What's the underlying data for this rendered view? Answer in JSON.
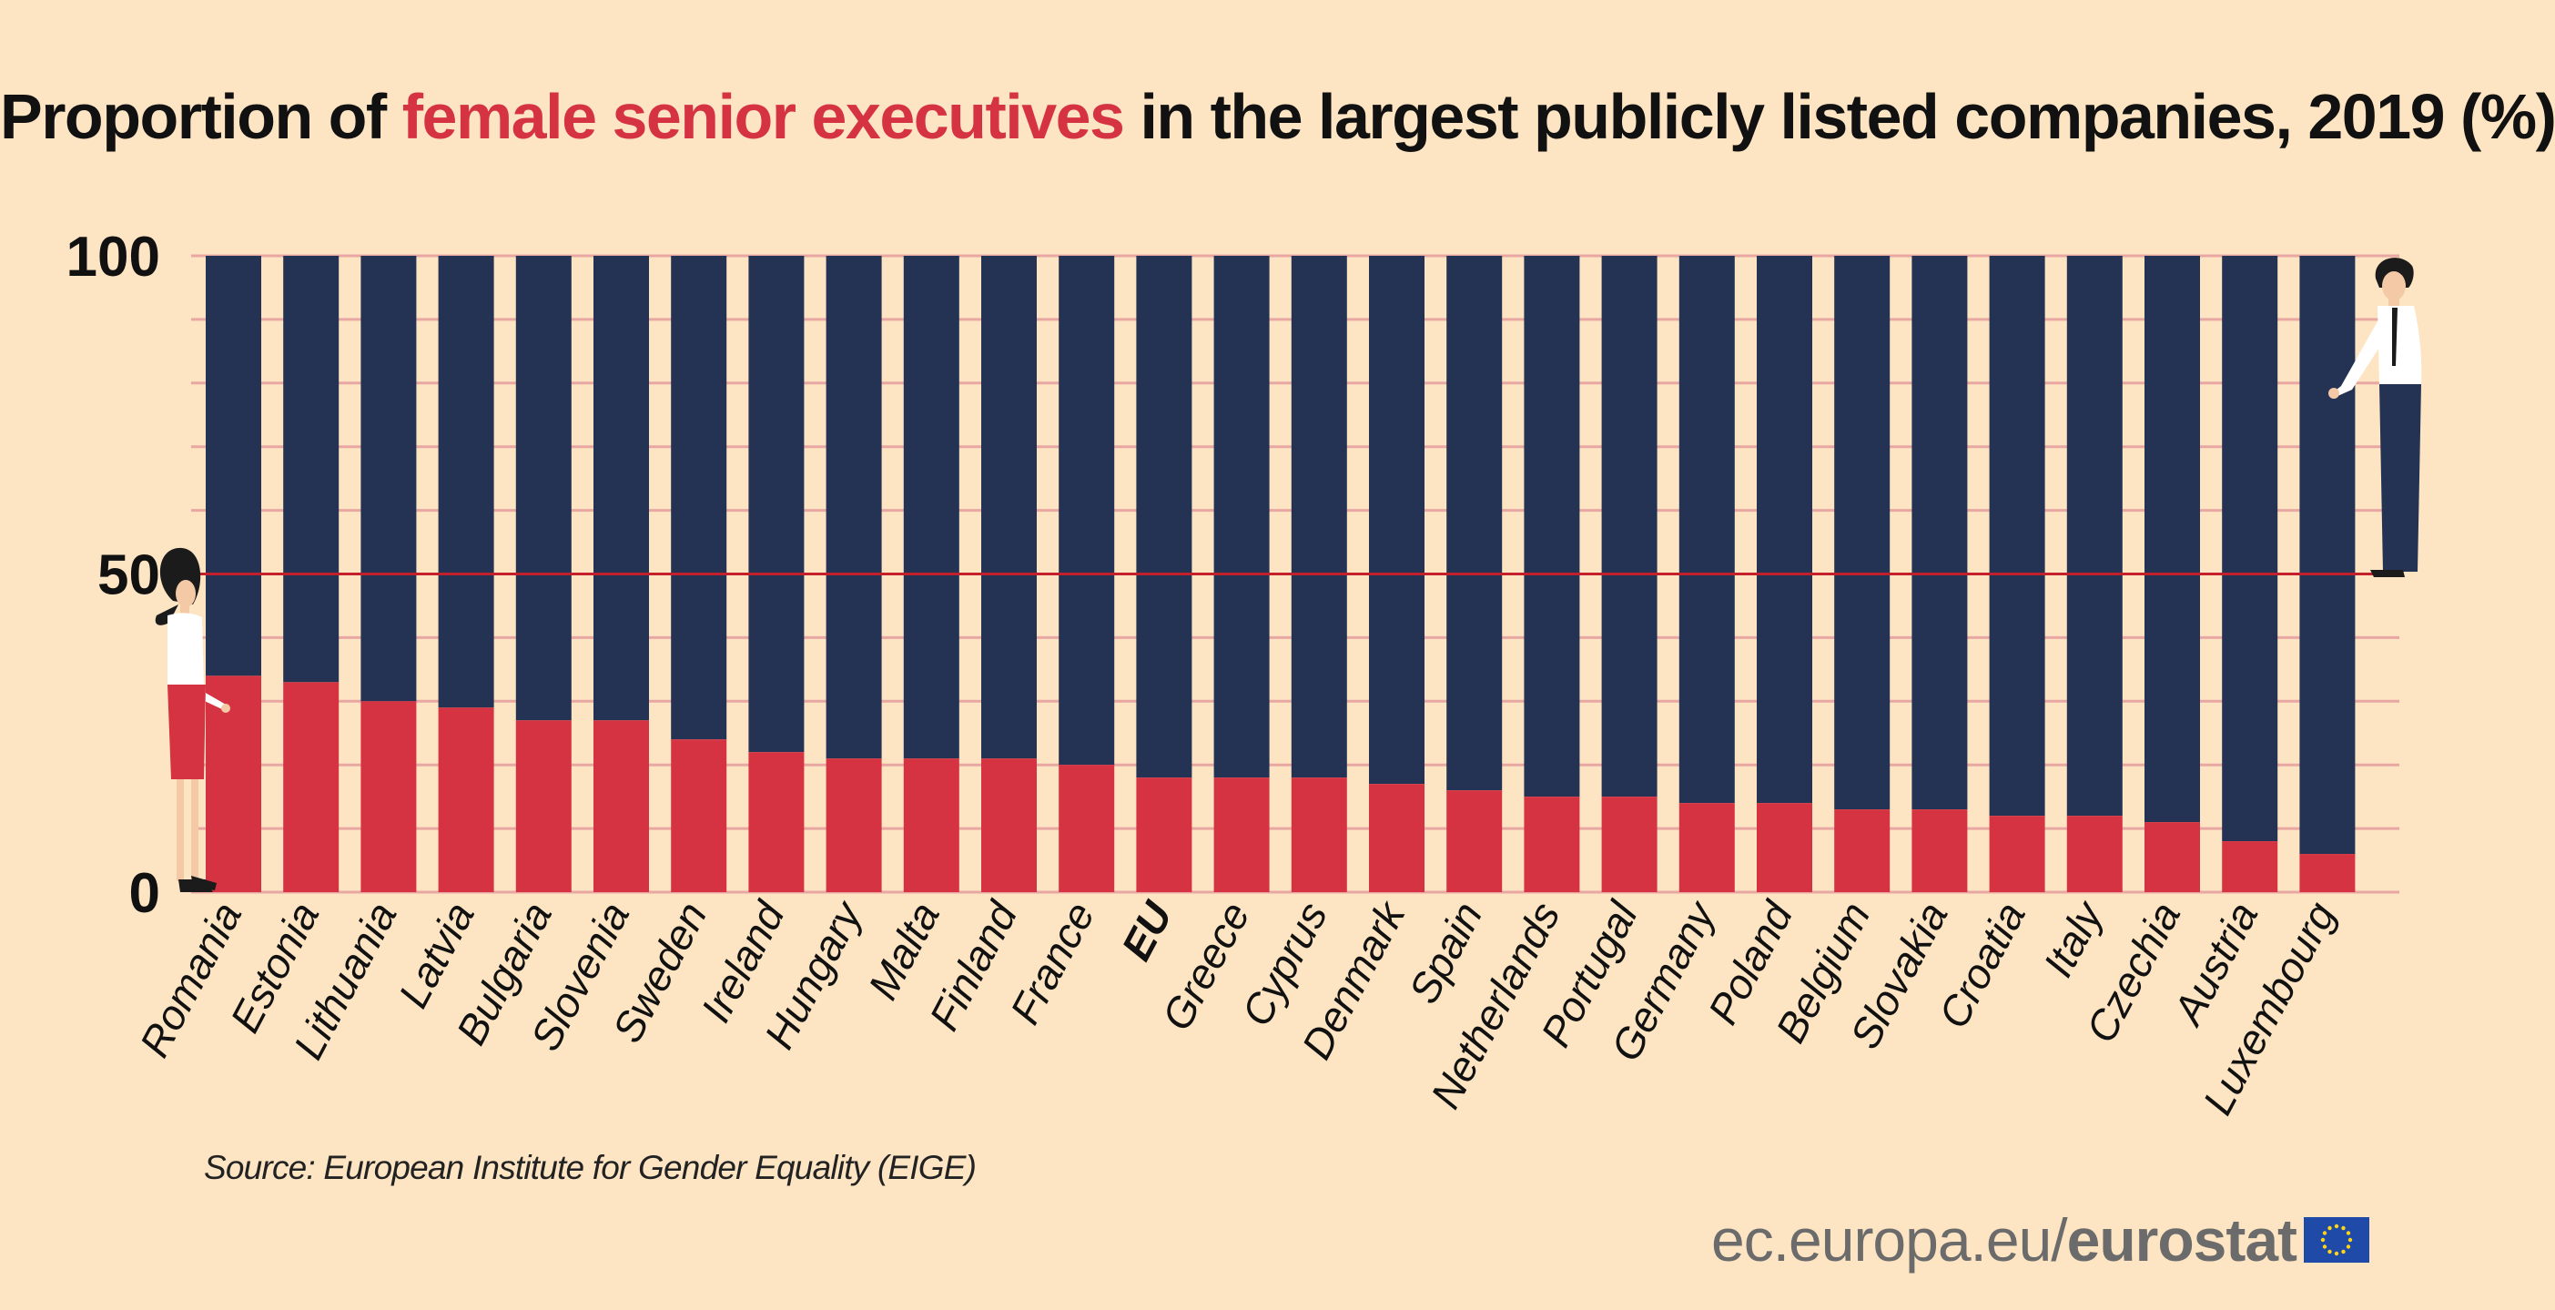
{
  "title": {
    "before": "Proportion of ",
    "accent": "female senior executives",
    "after": " in the largest publicly listed companies, 2019 (%)"
  },
  "source": "Source: European Institute for Gender Equality (EIGE)",
  "footer": {
    "url": "ec.europa.eu/",
    "brand": "eurostat"
  },
  "colors": {
    "background": "#fde5c3",
    "female": "#d63342",
    "male": "#243253",
    "gridline": "#e8a7a3",
    "reference_line": "#c3202b"
  },
  "chart_data": {
    "type": "bar",
    "stacked": true,
    "categories": [
      "Romania",
      "Estonia",
      "Lithuania",
      "Latvia",
      "Bulgaria",
      "Slovenia",
      "Sweden",
      "Ireland",
      "Hungary",
      "Malta",
      "Finland",
      "France",
      "EU",
      "Greece",
      "Cyprus",
      "Denmark",
      "Spain",
      "Netherlands",
      "Portugal",
      "Germany",
      "Poland",
      "Belgium",
      "Slovakia",
      "Croatia",
      "Italy",
      "Czechia",
      "Austria",
      "Luxembourg"
    ],
    "highlight_category": "EU",
    "series": [
      {
        "values": [
          34,
          33,
          30,
          29,
          27,
          27,
          24,
          22,
          21,
          21,
          21,
          20,
          18,
          18,
          18,
          17,
          16,
          15,
          15,
          14,
          14,
          13,
          13,
          12,
          12,
          11,
          8,
          6
        ]
      },
      {
        "values": [
          66,
          67,
          70,
          71,
          73,
          73,
          76,
          78,
          79,
          79,
          79,
          80,
          82,
          82,
          82,
          83,
          84,
          85,
          85,
          86,
          86,
          87,
          87,
          88,
          88,
          89,
          92,
          94
        ]
      }
    ],
    "y_ticks": [
      0,
      50,
      100
    ],
    "ylim": [
      0,
      100
    ],
    "reference_line": 50,
    "grid": true,
    "icons": [
      "woman-figure-icon",
      "man-figure-icon",
      "eu-flag-icon"
    ]
  }
}
